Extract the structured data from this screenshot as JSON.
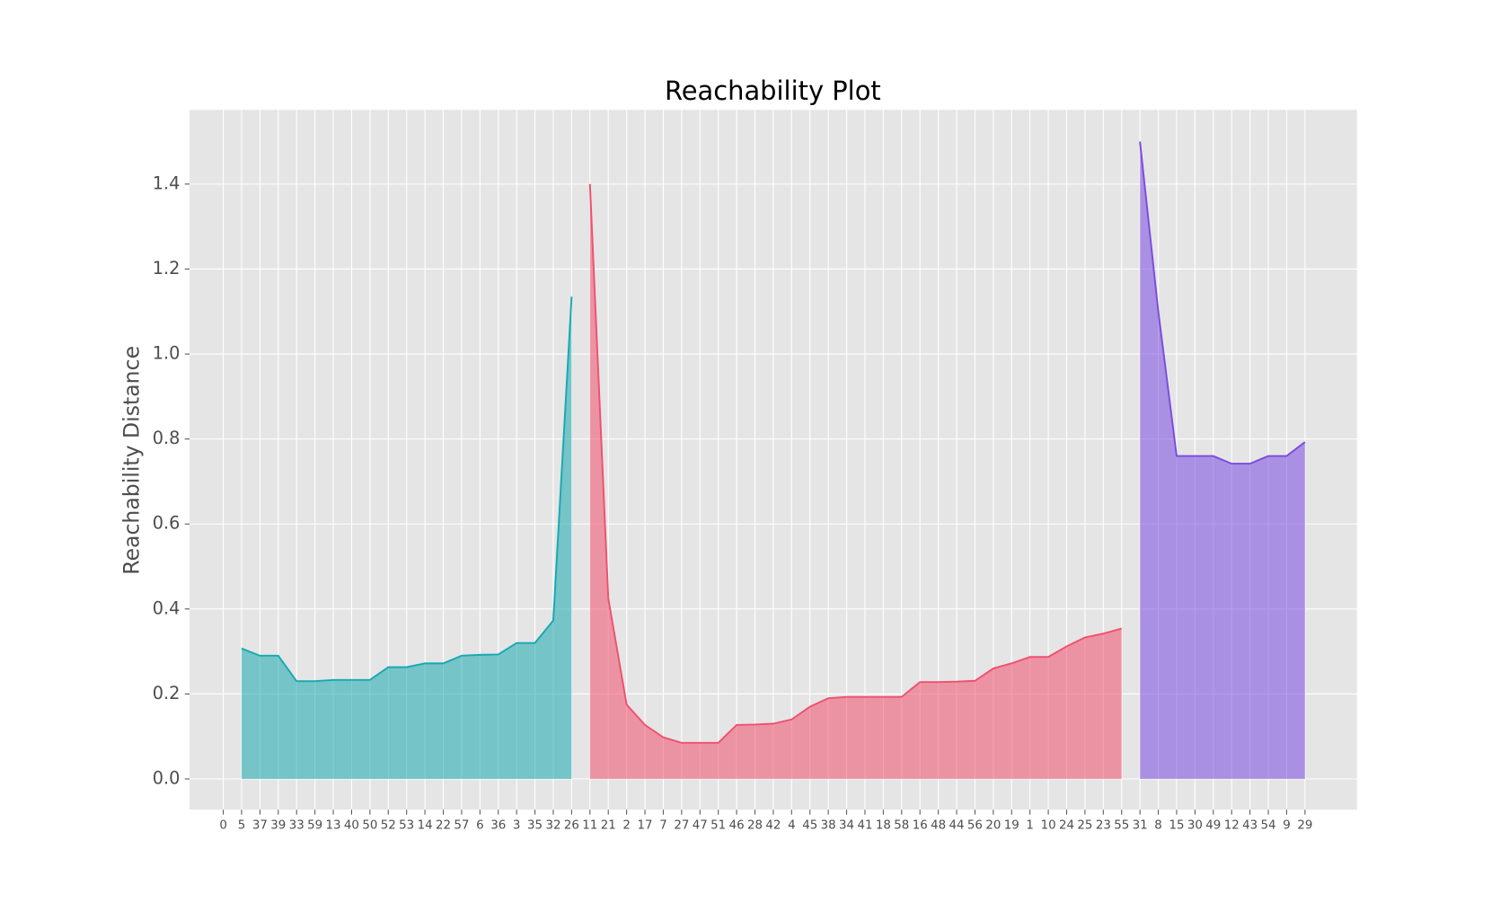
{
  "chart_data": {
    "type": "area",
    "title": "Reachability Plot",
    "ylabel": "Reachability Distance",
    "categories": [
      "0",
      "5",
      "37",
      "39",
      "33",
      "59",
      "13",
      "40",
      "50",
      "52",
      "53",
      "14",
      "22",
      "57",
      "6",
      "36",
      "3",
      "35",
      "32",
      "26",
      "11",
      "21",
      "2",
      "17",
      "7",
      "27",
      "47",
      "51",
      "46",
      "28",
      "42",
      "4",
      "45",
      "38",
      "34",
      "41",
      "18",
      "58",
      "16",
      "48",
      "44",
      "56",
      "20",
      "19",
      "1",
      "10",
      "24",
      "25",
      "23",
      "55",
      "31",
      "8",
      "15",
      "30",
      "49",
      "12",
      "43",
      "54",
      "9",
      "29"
    ],
    "series": [
      {
        "color": "#17a9b1",
        "values": [
          null,
          0.307,
          0.29,
          0.29,
          0.23,
          0.23,
          0.233,
          0.233,
          0.233,
          0.263,
          0.263,
          0.272,
          0.272,
          0.29,
          0.292,
          0.293,
          0.32,
          0.32,
          0.373,
          1.135,
          null,
          null,
          null,
          null,
          null,
          null,
          null,
          null,
          null,
          null,
          null,
          null,
          null,
          null,
          null,
          null,
          null,
          null,
          null,
          null,
          null,
          null,
          null,
          null,
          null,
          null,
          null,
          null,
          null,
          null,
          null,
          null,
          null,
          null,
          null,
          null,
          null,
          null,
          null,
          null
        ]
      },
      {
        "color": "#f0506e",
        "values": [
          null,
          null,
          null,
          null,
          null,
          null,
          null,
          null,
          null,
          null,
          null,
          null,
          null,
          null,
          null,
          null,
          null,
          null,
          null,
          null,
          1.4,
          0.425,
          0.175,
          0.127,
          0.098,
          0.085,
          0.085,
          0.085,
          0.127,
          0.128,
          0.13,
          0.14,
          0.17,
          0.19,
          0.193,
          0.193,
          0.193,
          0.193,
          0.228,
          0.228,
          0.229,
          0.231,
          0.26,
          0.272,
          0.287,
          0.287,
          0.312,
          0.333,
          0.342,
          0.354,
          null,
          null,
          null,
          null,
          null,
          null,
          null,
          null,
          null,
          null
        ]
      },
      {
        "color": "#7a4be0",
        "values": [
          null,
          null,
          null,
          null,
          null,
          null,
          null,
          null,
          null,
          null,
          null,
          null,
          null,
          null,
          null,
          null,
          null,
          null,
          null,
          null,
          null,
          null,
          null,
          null,
          null,
          null,
          null,
          null,
          null,
          null,
          null,
          null,
          null,
          null,
          null,
          null,
          null,
          null,
          null,
          null,
          null,
          null,
          null,
          null,
          null,
          null,
          null,
          null,
          null,
          null,
          1.5,
          1.1,
          0.76,
          0.76,
          0.76,
          0.742,
          0.742,
          0.76,
          0.76,
          0.793
        ]
      }
    ],
    "ylim": [
      -0.0725,
      1.5745
    ],
    "yticks": [
      {
        "value": 0,
        "label": "0.0"
      },
      0.2,
      0.4,
      0.6,
      0.8,
      {
        "value": 1,
        "label": "1.0"
      },
      1.2,
      1.4
    ],
    "grid": true
  }
}
